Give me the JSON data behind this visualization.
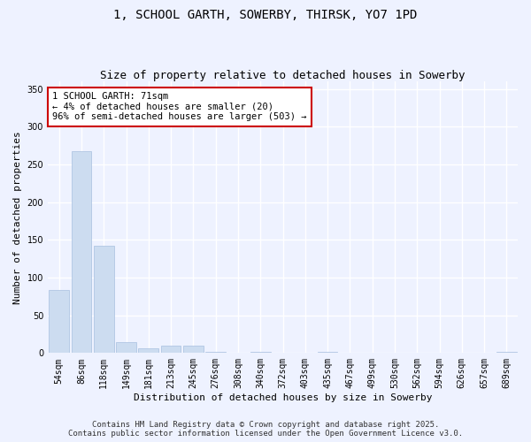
{
  "title": "1, SCHOOL GARTH, SOWERBY, THIRSK, YO7 1PD",
  "subtitle": "Size of property relative to detached houses in Sowerby",
  "xlabel": "Distribution of detached houses by size in Sowerby",
  "ylabel": "Number of detached properties",
  "categories": [
    "54sqm",
    "86sqm",
    "118sqm",
    "149sqm",
    "181sqm",
    "213sqm",
    "245sqm",
    "276sqm",
    "308sqm",
    "340sqm",
    "372sqm",
    "403sqm",
    "435sqm",
    "467sqm",
    "499sqm",
    "530sqm",
    "562sqm",
    "594sqm",
    "626sqm",
    "657sqm",
    "689sqm"
  ],
  "values": [
    83,
    268,
    142,
    15,
    6,
    10,
    10,
    2,
    0,
    2,
    0,
    0,
    1,
    0,
    0,
    0,
    0,
    0,
    0,
    0,
    2
  ],
  "bar_color": "#ccdcf0",
  "bar_edge_color": "#a8c0e0",
  "ylim": [
    0,
    360
  ],
  "yticks": [
    0,
    50,
    100,
    150,
    200,
    250,
    300,
    350
  ],
  "annotation_text": "1 SCHOOL GARTH: 71sqm\n← 4% of detached houses are smaller (20)\n96% of semi-detached houses are larger (503) →",
  "annotation_box_color": "#ffffff",
  "annotation_box_edge": "#cc0000",
  "footer_line1": "Contains HM Land Registry data © Crown copyright and database right 2025.",
  "footer_line2": "Contains public sector information licensed under the Open Government Licence v3.0.",
  "bg_color": "#eef2ff",
  "plot_bg_color": "#eef2ff",
  "title_fontsize": 10,
  "subtitle_fontsize": 9,
  "axis_label_fontsize": 8,
  "tick_fontsize": 7,
  "annotation_fontsize": 7.5,
  "footer_fontsize": 6.5,
  "grid_color": "#ffffff",
  "grid_linewidth": 1.0
}
